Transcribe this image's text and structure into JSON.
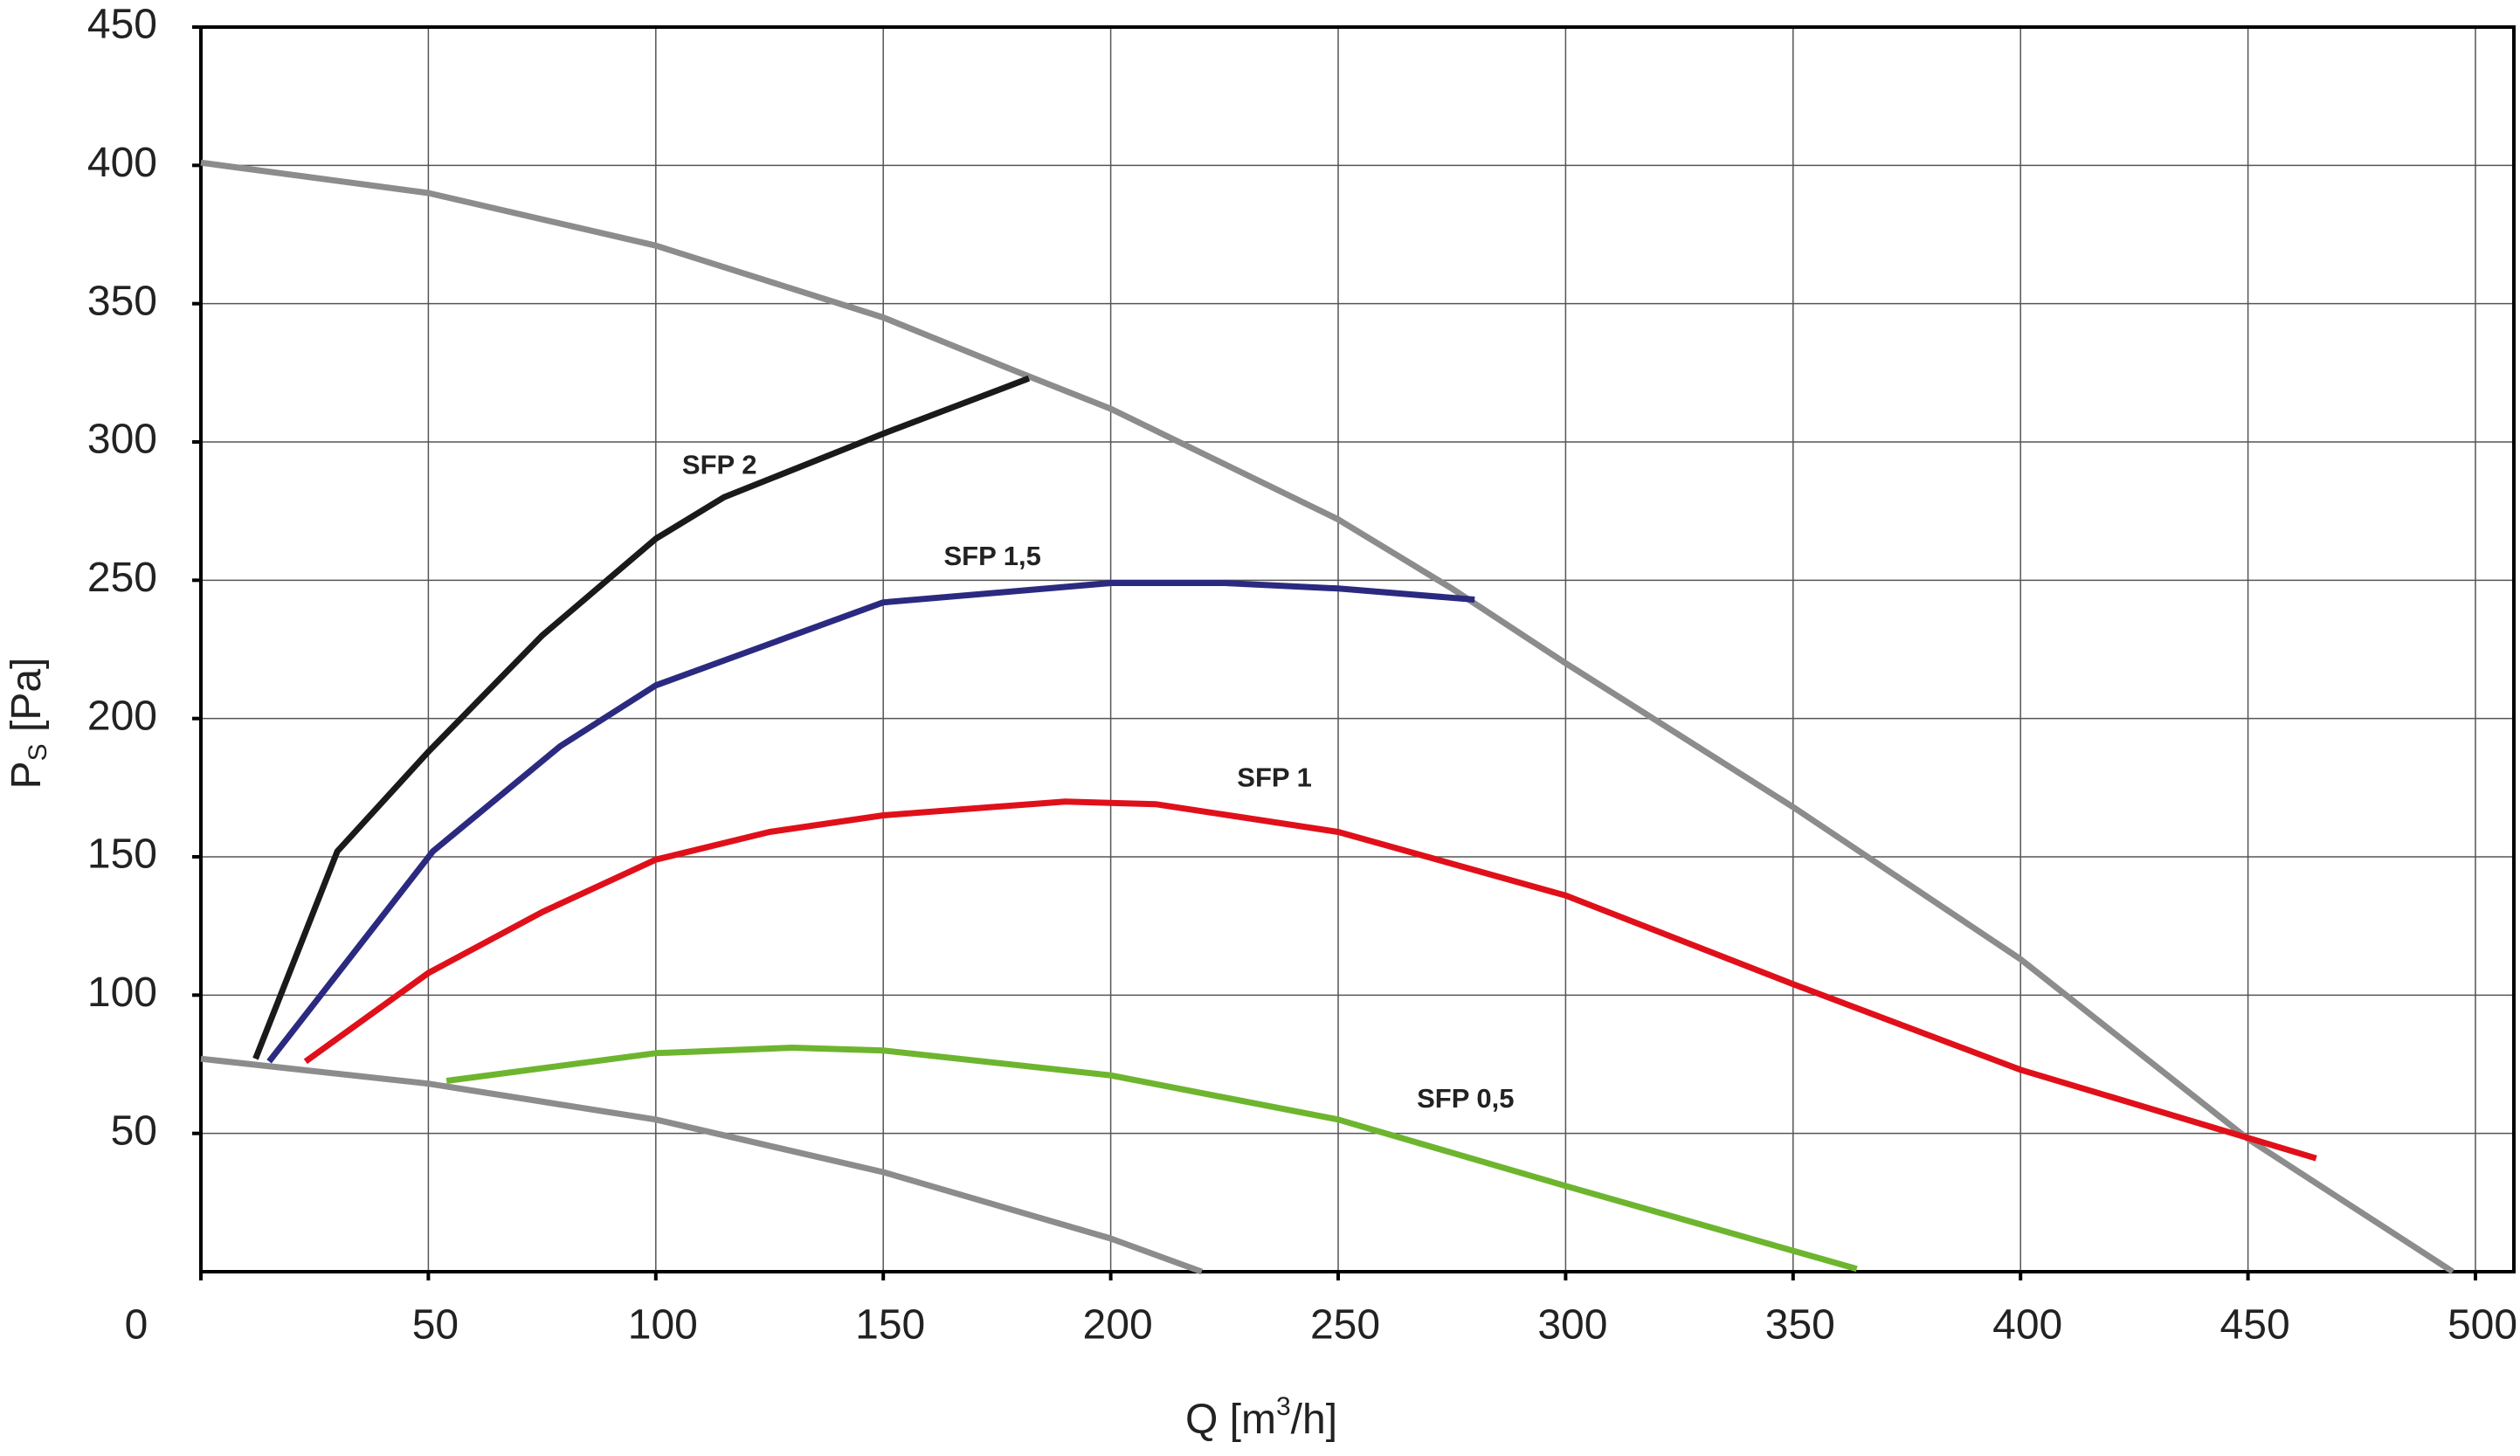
{
  "chart_data": {
    "type": "line",
    "xlabel": {
      "main": "Q [m",
      "sup": "3",
      "rest": "/h]"
    },
    "ylabel": {
      "main": "P",
      "sub": "S",
      "rest": " [Pa]"
    },
    "xlim": [
      0,
      500
    ],
    "ylim": [
      0,
      450
    ],
    "xticks": [
      0,
      50,
      100,
      150,
      200,
      250,
      300,
      350,
      400,
      450,
      500
    ],
    "yticks": [
      50,
      100,
      150,
      200,
      250,
      300,
      350,
      400,
      450
    ],
    "grid": true,
    "series": [
      {
        "color": "#8c8c8c",
        "x": [
          0,
          50,
          100,
          150,
          180,
          200,
          250,
          275,
          300,
          350,
          400,
          450,
          465,
          495
        ],
        "values": [
          401,
          390,
          371,
          345,
          325,
          312,
          272,
          247,
          220,
          168,
          113,
          48,
          32,
          0
        ]
      },
      {
        "color": "#8c8c8c",
        "x": [
          0,
          50,
          100,
          150,
          200,
          220
        ],
        "values": [
          77,
          68,
          55,
          36,
          12,
          0
        ]
      },
      {
        "color": "#1a1a1a",
        "x": [
          12,
          30,
          50,
          75,
          100,
          115,
          150,
          182
        ],
        "values": [
          77,
          152,
          188,
          230,
          265,
          280,
          303,
          323
        ]
      },
      {
        "color": "#2b2a80",
        "x": [
          15,
          51,
          79,
          100,
          150,
          200,
          225,
          250,
          280
        ],
        "values": [
          76,
          152,
          190,
          212,
          242,
          249,
          249,
          247,
          243
        ]
      },
      {
        "color": "#e0101a",
        "x": [
          23,
          50,
          75,
          100,
          125,
          150,
          190,
          210,
          250,
          300,
          350,
          400,
          465
        ],
        "values": [
          76,
          108,
          130,
          149,
          159,
          165,
          170,
          169,
          159,
          136,
          104,
          73,
          41
        ]
      },
      {
        "color": "#6db52e",
        "x": [
          54,
          100,
          130,
          150,
          200,
          250,
          300,
          364
        ],
        "values": [
          69,
          79,
          81,
          80,
          71,
          55,
          31,
          1
        ]
      }
    ],
    "annotations": [
      {
        "text": "SFP 2",
        "x": 114,
        "y": 291
      },
      {
        "text": "SFP 1,5",
        "x": 174,
        "y": 258
      },
      {
        "text": "SFP 1",
        "x": 236,
        "y": 178
      },
      {
        "text": "SFP 0,5",
        "x": 278,
        "y": 62
      }
    ]
  }
}
